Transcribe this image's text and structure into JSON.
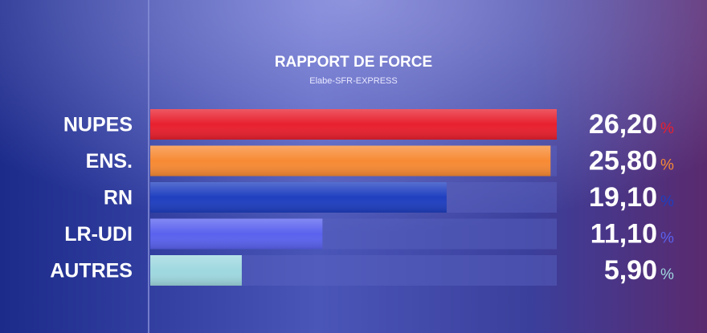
{
  "chart_data": {
    "type": "hbar",
    "title": "RAPPORT DE FORCE",
    "subtitle": "Elabe-SFR-EXPRESS",
    "categories": [
      "NUPES",
      "ENS.",
      "RN",
      "LR-UDI",
      "AUTRES"
    ],
    "values": [
      26.2,
      25.8,
      19.1,
      11.1,
      5.9
    ],
    "value_labels": [
      "26,20",
      "25,80",
      "19,10",
      "11,10",
      "5,90"
    ],
    "value_unit": "%",
    "colors": [
      "#e8202e",
      "#f78a34",
      "#1f3fc0",
      "#5a62ee",
      "#9fd8e0"
    ],
    "xlim": [
      0,
      26.2
    ]
  }
}
